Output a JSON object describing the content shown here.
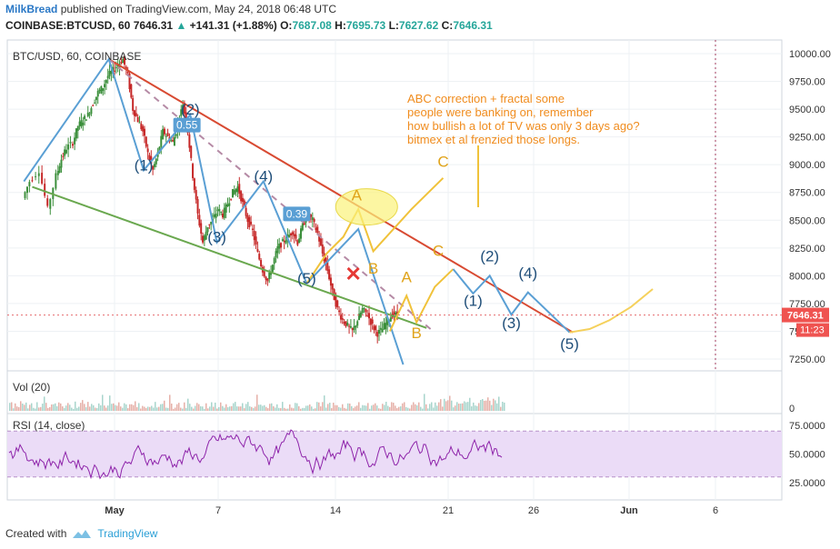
{
  "header": {
    "user": "MilkBread",
    "published": "published on TradingView.com, May 24, 2018 06:48 UTC",
    "symbol": "COINBASE:BTCUSD, 60",
    "last": "7646.31",
    "arrow": "▲",
    "change": "+141.31 (+1.88%)",
    "o_label": "O:",
    "o": "7687.08",
    "h_label": "H:",
    "h": "7695.73",
    "l_label": "L:",
    "l": "7627.62",
    "c_label": "C:",
    "c": "7646.31"
  },
  "footer": {
    "created_with": "Created with",
    "brand": "TradingView"
  },
  "colors": {
    "accent": "#2a78c6",
    "up": "#26a69a",
    "down": "#ef5350",
    "elliott": "#3a7fc0",
    "abc": "#e6a817",
    "note": "#f08c1e",
    "resistance": "#d84a32",
    "support": "#6aa84f",
    "rsi_band": "#e9d7f5",
    "rsi_line": "#7b1fa2"
  },
  "chart_data": [
    {
      "type": "line",
      "title": "BTC/USD, 60, COINBASE",
      "y_ticks": [
        "10000.00",
        "9750.00",
        "9500.00",
        "9250.00",
        "9000.00",
        "8750.00",
        "8500.00",
        "8250.00",
        "8000.00",
        "7750.00",
        "7500.00",
        "7250.00"
      ],
      "x_ticks": [
        "May",
        "7",
        "14",
        "21",
        "26",
        "Jun",
        "6"
      ],
      "ylim": [
        7150,
        10120
      ],
      "last_price": "7646.31",
      "countdown": "11:23",
      "price_path": {
        "x_day": [
          1.0,
          1.4,
          2.0,
          2.5,
          3.0,
          3.3,
          3.6,
          4.0,
          4.3,
          4.6,
          4.9,
          5.2,
          5.5,
          5.8,
          6.1,
          6.4,
          6.7,
          7.0,
          7.3,
          7.6,
          7.9,
          8.2,
          8.5,
          8.8,
          9.1,
          9.4,
          9.7,
          10.0,
          10.3,
          10.6,
          10.9,
          11.2,
          11.5,
          11.8,
          12.1,
          12.4,
          12.7,
          13.0,
          13.3,
          13.6,
          13.9,
          14.2,
          14.5,
          14.8,
          15.1,
          15.4,
          15.7,
          16.0,
          16.3,
          16.6,
          16.9,
          17.2,
          17.5,
          17.8,
          18.1,
          18.4,
          18.7,
          19.0,
          19.3,
          19.6,
          19.9,
          20.2,
          20.5,
          20.8,
          21.1,
          21.4,
          21.7,
          22.0,
          22.3,
          22.6,
          22.9,
          23.2,
          23.5
        ],
        "y": [
          8700,
          8850,
          8950,
          8600,
          8900,
          9050,
          9150,
          9200,
          9350,
          9400,
          9450,
          9550,
          9650,
          9700,
          9800,
          9850,
          9900,
          9950,
          9800,
          9500,
          9400,
          9300,
          9100,
          8950,
          9100,
          9300,
          9250,
          9200,
          9350,
          9550,
          9300,
          8900,
          8550,
          8300,
          8450,
          8500,
          8600,
          8550,
          8650,
          8750,
          8800,
          8650,
          8500,
          8400,
          8200,
          8050,
          7950,
          8100,
          8250,
          8300,
          8350,
          8400,
          8300,
          8450,
          8550,
          8500,
          8380,
          8200,
          8050,
          7850,
          7700,
          7600,
          7550,
          7500,
          7600,
          7700,
          7650,
          7550,
          7480,
          7520,
          7600,
          7650,
          7646
        ]
      },
      "elliott_primary": {
        "x_day": [
          1.0,
          6.1,
          8.2,
          11.0,
          12.6,
          15.4,
          18.0,
          21.1,
          23.8
        ],
        "y": [
          8850,
          9950,
          8950,
          9450,
          8300,
          8850,
          7930,
          8420,
          7200
        ],
        "labels": [
          {
            "x_day": 8.2,
            "y": 8950,
            "text": "(1)"
          },
          {
            "x_day": 11.0,
            "y": 9450,
            "text": "(2)"
          },
          {
            "x_day": 12.6,
            "y": 8300,
            "text": "(3)"
          },
          {
            "x_day": 15.4,
            "y": 8850,
            "text": "(4)"
          },
          {
            "x_day": 18.0,
            "y": 7930,
            "text": "(5)"
          }
        ],
        "fib_labels": [
          {
            "x_day": 10.8,
            "y": 9340,
            "text": "0.55"
          },
          {
            "x_day": 17.4,
            "y": 8540,
            "text": "0.39"
          }
        ]
      },
      "abc_past": {
        "x_day": [
          18.0,
          19.2,
          20.2,
          21.1,
          22.0,
          24.3,
          26.2
        ],
        "y": [
          7930,
          8200,
          8350,
          8600,
          8220,
          8600,
          8880
        ],
        "labels": [
          {
            "x_day": 21.0,
            "y": 8680,
            "text": "A"
          },
          {
            "x_day": 22.0,
            "y": 8020,
            "text": "B"
          },
          {
            "x_day": 26.2,
            "y": 8980,
            "text": "C"
          }
        ]
      },
      "abc_projection": {
        "x_day": [
          23.0,
          24.0,
          24.6,
          25.7,
          26.8
        ],
        "y": [
          7500,
          7820,
          7580,
          7900,
          8060
        ],
        "labels": [
          {
            "x_day": 24.0,
            "y": 7940,
            "text": "A"
          },
          {
            "x_day": 24.6,
            "y": 7440,
            "text": "B"
          },
          {
            "x_day": 25.9,
            "y": 8180,
            "text": "C"
          }
        ]
      },
      "elliott_projection": {
        "x_day": [
          26.8,
          28.0,
          29.0,
          30.3,
          31.3,
          33.8
        ],
        "y": [
          8060,
          7840,
          8000,
          7650,
          7850,
          7490
        ],
        "labels": [
          {
            "x_day": 28.0,
            "y": 7730,
            "text": "(1)"
          },
          {
            "x_day": 29.0,
            "y": 8130,
            "text": "(2)"
          },
          {
            "x_day": 30.3,
            "y": 7530,
            "text": "(3)"
          },
          {
            "x_day": 31.3,
            "y": 7980,
            "text": "(4)"
          },
          {
            "x_day": 33.8,
            "y": 7340,
            "text": "(5)"
          }
        ]
      },
      "ending_curve": {
        "x_day": [
          33.8,
          35.0,
          36.2,
          37.5,
          38.8
        ],
        "y": [
          7490,
          7520,
          7600,
          7720,
          7880
        ]
      },
      "resistance_line": {
        "x_day": [
          6.1,
          34.0
        ],
        "y": [
          9950,
          7490
        ]
      },
      "support_line": {
        "x_day": [
          1.5,
          25.2
        ],
        "y": [
          8800,
          7530
        ]
      },
      "dashed_channel": {
        "x_day": [
          6.1,
          25.6
        ],
        "y": [
          9950,
          7500
        ]
      },
      "highlight_ellipse": {
        "x_day": 21.6,
        "y": 8620
      },
      "cross_mark": {
        "x_day": 20.8,
        "y": 8020
      },
      "annotation": "ABC correction + fractal some\npeople were banking on, remember\nhow bullish a lot of TV was only 3 days ago?\nbitmex et al frenzied those longs."
    },
    {
      "type": "bar",
      "title": "Vol (20)",
      "y_ticks": [
        "0"
      ]
    },
    {
      "type": "line",
      "title": "RSI (14, close)",
      "y_ticks": [
        "75.0000",
        "50.0000",
        "25.0000"
      ],
      "ylim": [
        15,
        80
      ],
      "band": [
        30,
        70
      ]
    }
  ]
}
